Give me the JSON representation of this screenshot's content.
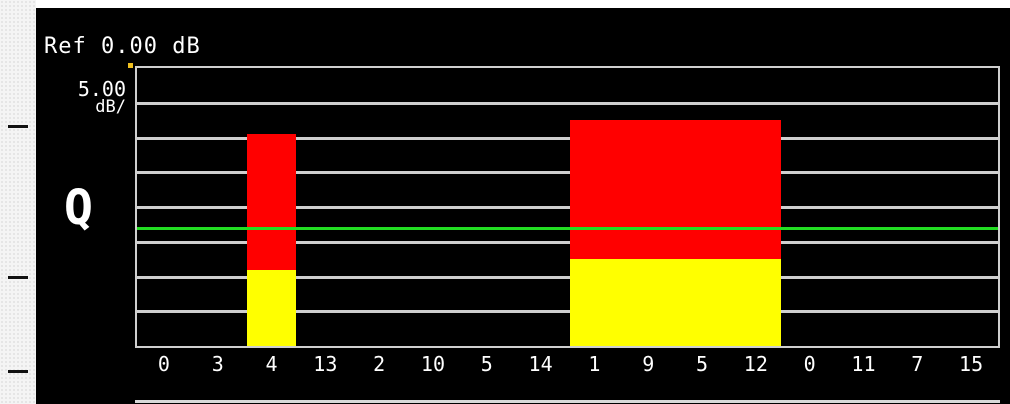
{
  "header": {
    "ref_label": "Ref 0.00 dB"
  },
  "scale": {
    "value": "5.00",
    "unit": "dB/"
  },
  "mode": {
    "letter": "Q"
  },
  "chart_data": {
    "type": "bar",
    "categories": [
      "0",
      "3",
      "4",
      "13",
      "2",
      "10",
      "5",
      "14",
      "1",
      "9",
      "5",
      "12",
      "0",
      "11",
      "7",
      "15"
    ],
    "y_divisions": 8,
    "reference_level_divisions": 3.4,
    "series": [
      {
        "color": "#ff0000",
        "bars": [
          {
            "start": 2,
            "span": 1,
            "top": 6.1
          },
          {
            "start": 8,
            "span": 4,
            "top": 6.5
          }
        ]
      },
      {
        "color": "#ffff00",
        "bars": [
          {
            "start": 2,
            "span": 1,
            "top": 2.2
          },
          {
            "start": 8,
            "span": 4,
            "top": 2.5
          }
        ]
      }
    ],
    "grid": true
  },
  "colors": {
    "background": "#000000",
    "grid": "#cfcfcf",
    "bar_upper": "#ff0000",
    "bar_lower": "#ffff00",
    "reference_line": "#22dd22"
  }
}
